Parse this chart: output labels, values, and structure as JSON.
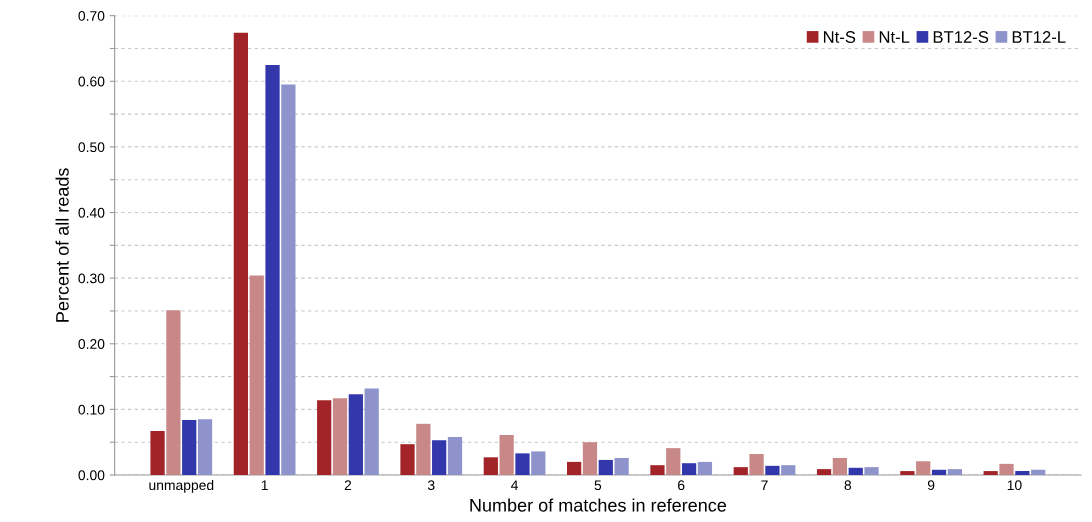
{
  "chart_data": {
    "type": "bar",
    "xlabel": "Number of matches in reference",
    "ylabel": "Percent of all reads",
    "categories": [
      "unmapped",
      "1",
      "2",
      "3",
      "4",
      "5",
      "6",
      "7",
      "8",
      "9",
      "10"
    ],
    "series": [
      {
        "name": "Nt-S",
        "color": "#a32428",
        "values": [
          0.067,
          0.674,
          0.114,
          0.047,
          0.027,
          0.02,
          0.015,
          0.012,
          0.009,
          0.006,
          0.006
        ]
      },
      {
        "name": "Nt-L",
        "color": "#c98888",
        "values": [
          0.251,
          0.304,
          0.117,
          0.078,
          0.061,
          0.05,
          0.041,
          0.032,
          0.026,
          0.021,
          0.017
        ]
      },
      {
        "name": "BT12-S",
        "color": "#3237ac",
        "values": [
          0.084,
          0.625,
          0.123,
          0.053,
          0.033,
          0.023,
          0.018,
          0.014,
          0.011,
          0.008,
          0.006
        ]
      },
      {
        "name": "BT12-L",
        "color": "#8e93cb",
        "values": [
          0.085,
          0.595,
          0.132,
          0.058,
          0.036,
          0.026,
          0.02,
          0.015,
          0.012,
          0.009,
          0.008
        ]
      }
    ],
    "ylim": [
      0,
      0.7
    ],
    "yticks": [
      {
        "value": 0,
        "label": "0.00"
      },
      {
        "value": 0.05,
        "label": null
      },
      {
        "value": 0.1,
        "label": "0.10"
      },
      {
        "value": 0.15,
        "label": null
      },
      {
        "value": 0.2,
        "label": "0.20"
      },
      {
        "value": 0.25,
        "label": null
      },
      {
        "value": 0.3,
        "label": "0.30"
      },
      {
        "value": 0.35,
        "label": null
      },
      {
        "value": 0.4,
        "label": "0.40"
      },
      {
        "value": 0.45,
        "label": null
      },
      {
        "value": 0.5,
        "label": "0.50"
      },
      {
        "value": 0.55,
        "label": null
      },
      {
        "value": 0.6,
        "label": "0.60"
      },
      {
        "value": 0.65,
        "label": null
      },
      {
        "value": 0.7,
        "label": "0.70"
      }
    ],
    "grid": "y",
    "legend": "top right"
  }
}
